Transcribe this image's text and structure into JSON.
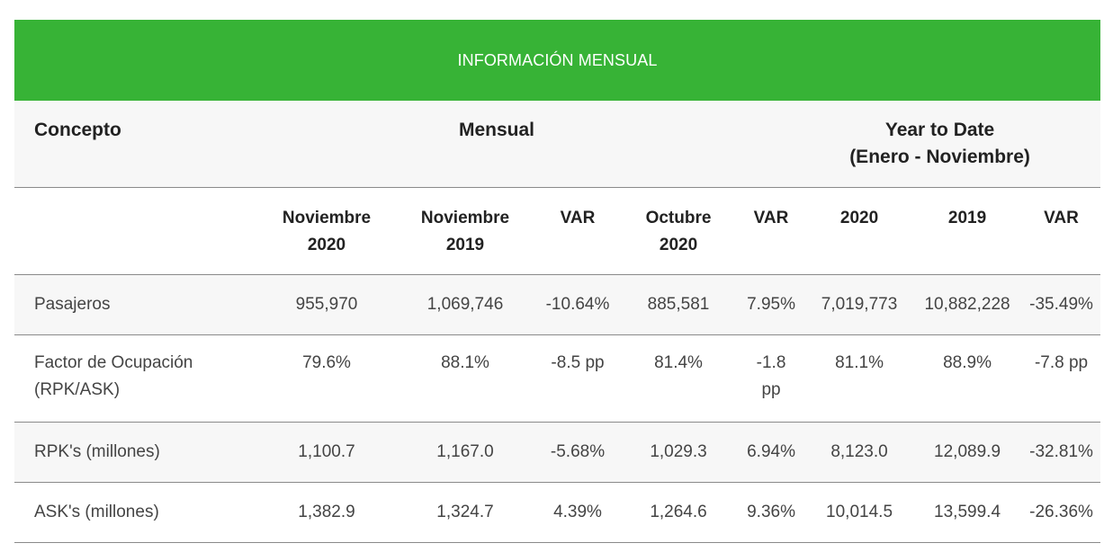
{
  "banner": {
    "title": "INFORMACIÓN MENSUAL"
  },
  "headers": {
    "concepto": "Concepto",
    "mensual": "Mensual",
    "ytd_line1": "Year to Date",
    "ytd_line2": "(Enero - Noviembre)"
  },
  "columns": [
    {
      "line1": "Noviembre",
      "line2": "2020"
    },
    {
      "line1": "Noviembre",
      "line2": "2019"
    },
    {
      "line1": "VAR",
      "line2": ""
    },
    {
      "line1": "Octubre",
      "line2": "2020"
    },
    {
      "line1": "VAR",
      "line2": ""
    },
    {
      "line1": "2020",
      "line2": ""
    },
    {
      "line1": "2019",
      "line2": ""
    },
    {
      "line1": "VAR",
      "line2": ""
    }
  ],
  "rows": [
    {
      "label": "Pasajeros",
      "values": [
        "955,970",
        "1,069,746",
        "-10.64%",
        "885,581",
        "7.95%",
        "7,019,773",
        "10,882,228",
        "-35.49%"
      ]
    },
    {
      "label": "Factor de Ocupación (RPK/ASK)",
      "values": [
        "79.6%",
        "88.1%",
        "-8.5 pp",
        "81.4%",
        "-1.8 pp",
        "81.1%",
        "88.9%",
        "-7.8 pp"
      ]
    },
    {
      "label": "RPK's (millones)",
      "values": [
        "1,100.7",
        "1,167.0",
        "-5.68%",
        "1,029.3",
        "6.94%",
        "8,123.0",
        "12,089.9",
        "-32.81%"
      ]
    },
    {
      "label": "ASK's (millones)",
      "values": [
        "1,382.9",
        "1,324.7",
        "4.39%",
        "1,264.6",
        "9.36%",
        "10,014.5",
        "13,599.4",
        "-26.36%"
      ]
    }
  ]
}
